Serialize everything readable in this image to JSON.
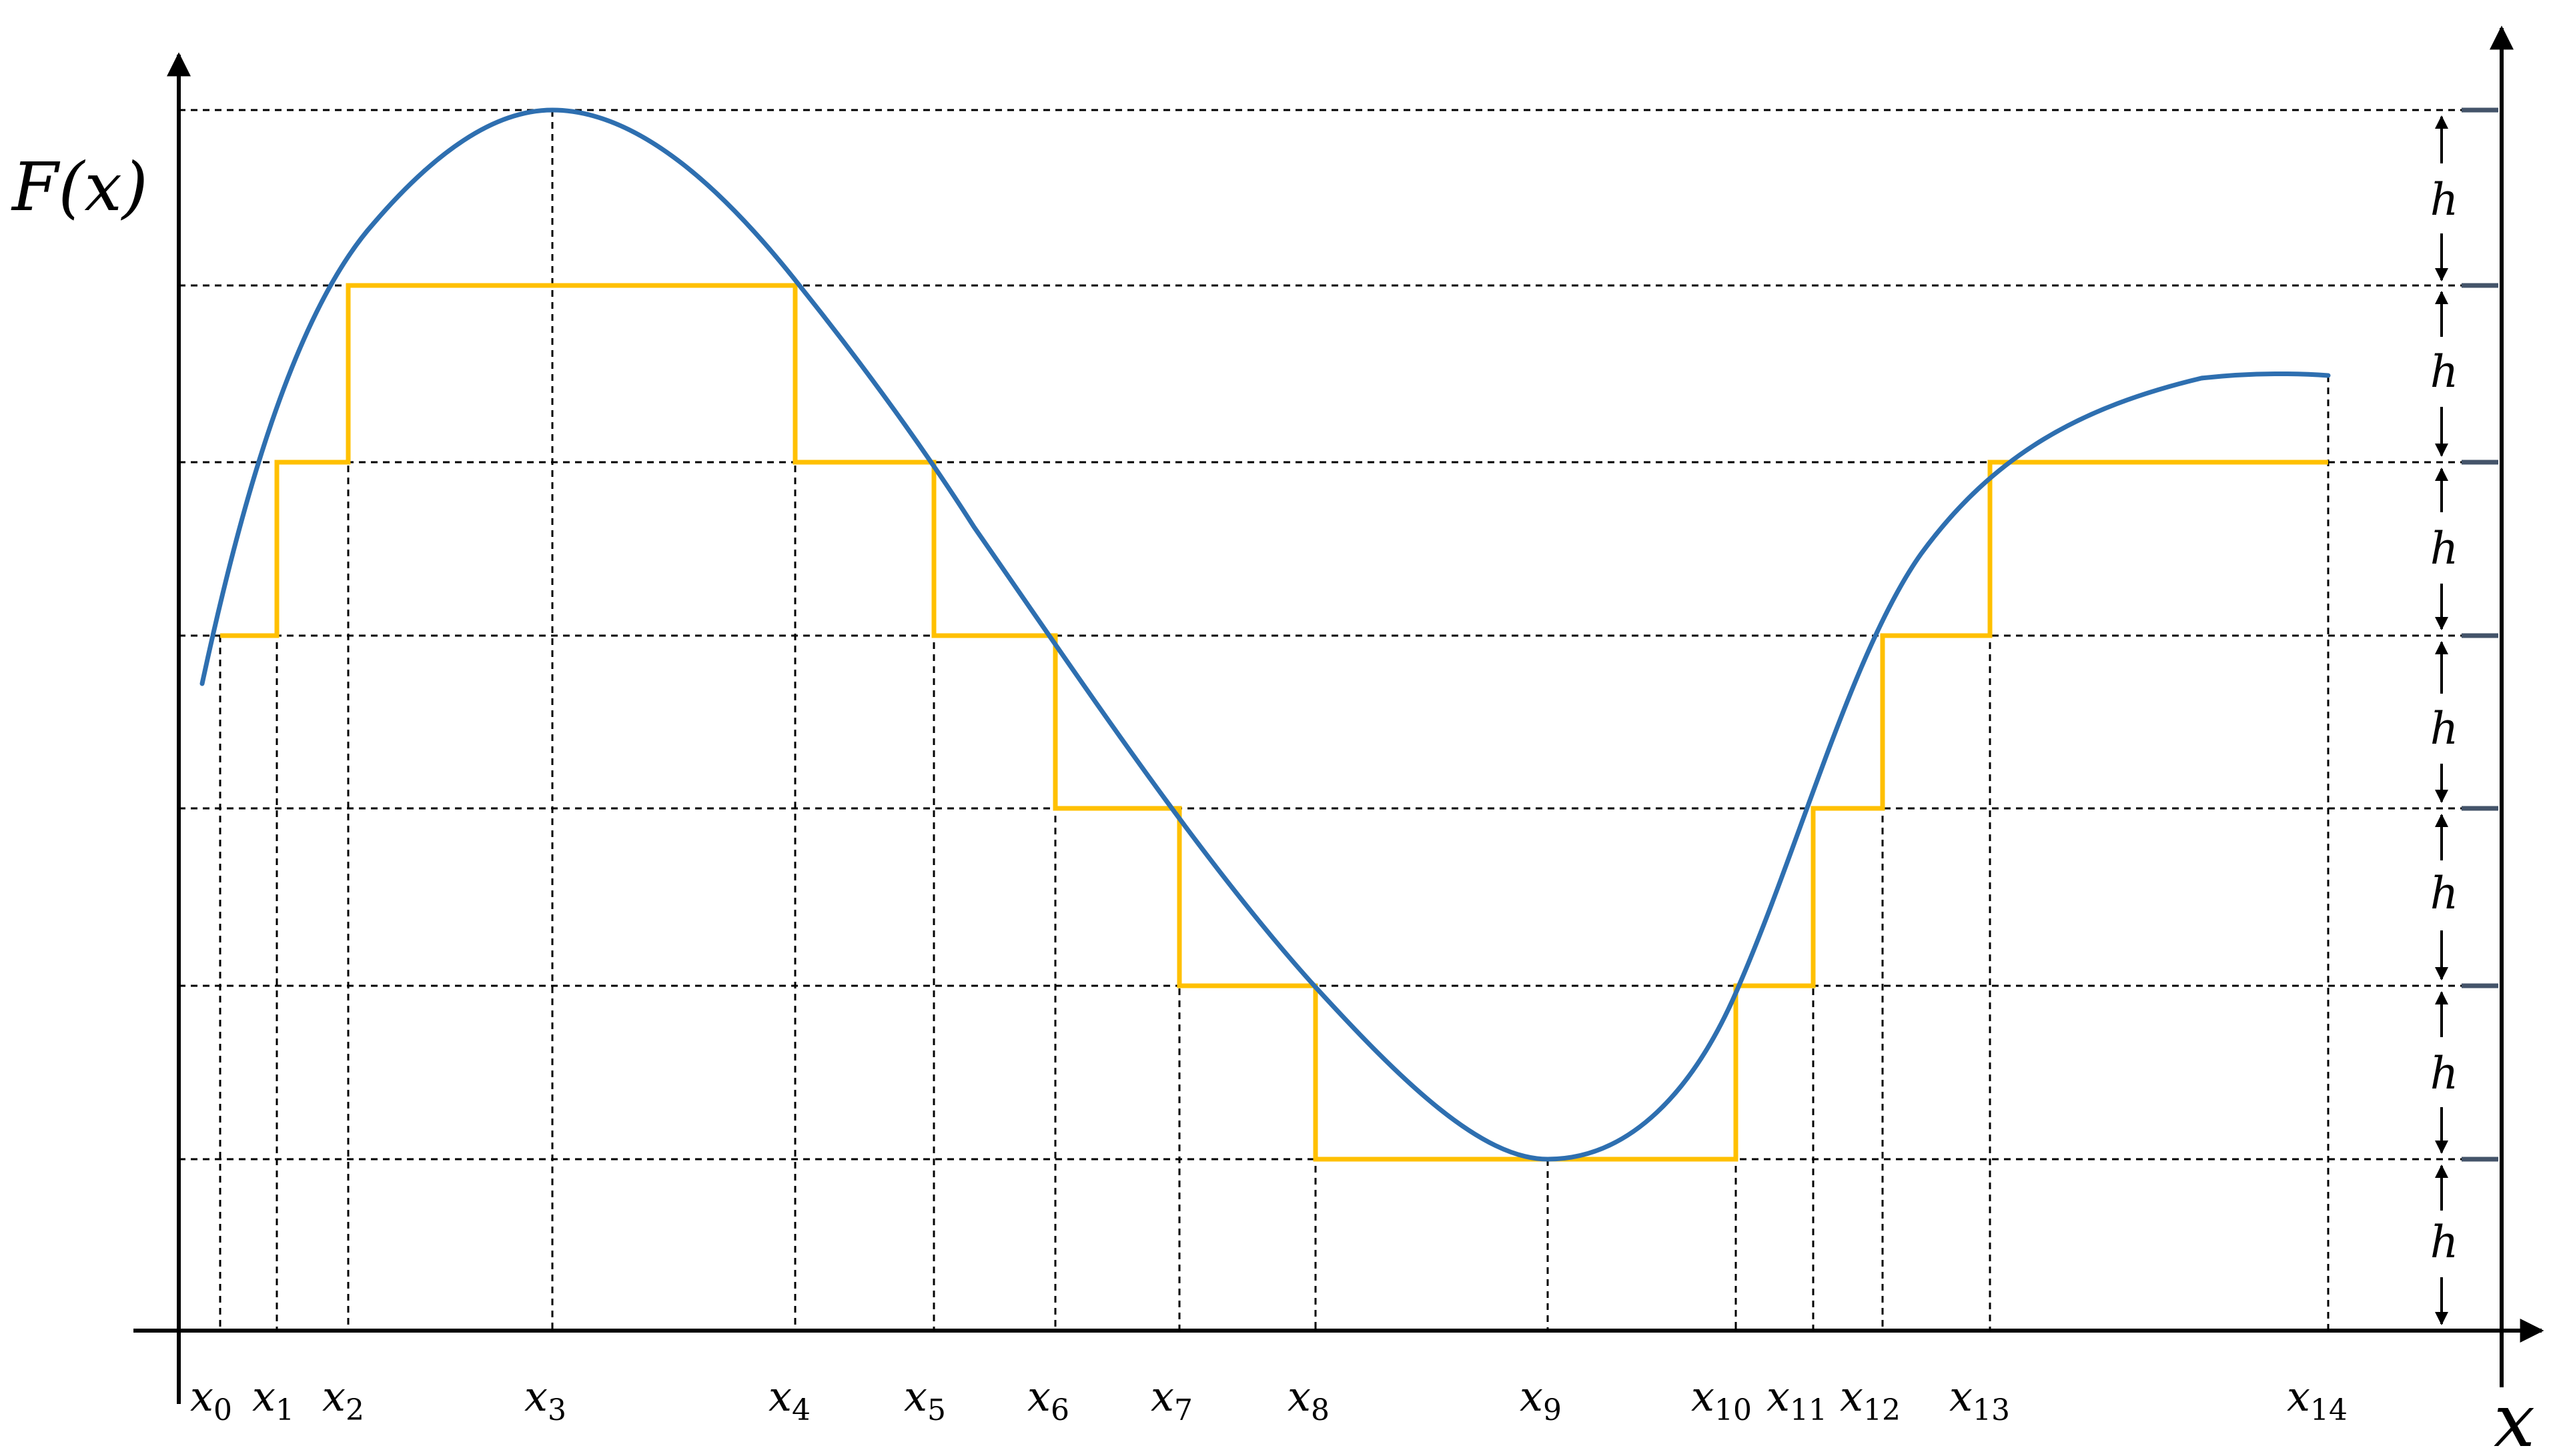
{
  "labels": {
    "y_axis": "F(x)",
    "x_axis": "x",
    "step": "h"
  },
  "x_points": [
    {
      "base": "x",
      "sub": "0"
    },
    {
      "base": "x",
      "sub": "1"
    },
    {
      "base": "x",
      "sub": "2"
    },
    {
      "base": "x",
      "sub": "3"
    },
    {
      "base": "x",
      "sub": "4"
    },
    {
      "base": "x",
      "sub": "5"
    },
    {
      "base": "x",
      "sub": "6"
    },
    {
      "base": "x",
      "sub": "7"
    },
    {
      "base": "x",
      "sub": "8"
    },
    {
      "base": "x",
      "sub": "9"
    },
    {
      "base": "x",
      "sub": "10"
    },
    {
      "base": "x",
      "sub": "11"
    },
    {
      "base": "x",
      "sub": "12"
    },
    {
      "base": "x",
      "sub": "13"
    },
    {
      "base": "x",
      "sub": "14"
    }
  ],
  "colors": {
    "curve": "#2e6fb0",
    "steps": "#ffc000",
    "axes": "#000000",
    "guides": "#000000",
    "level_ticks": "#44546a"
  }
}
